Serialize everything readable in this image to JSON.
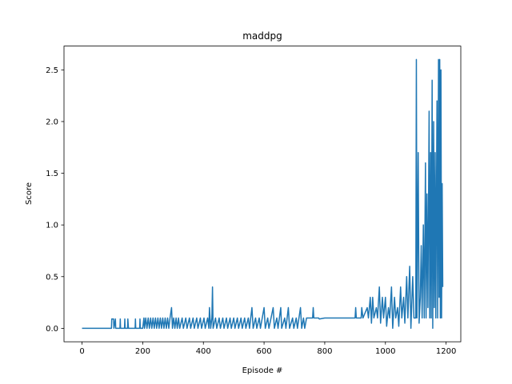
{
  "chart_data": {
    "type": "line",
    "title": "maddpg",
    "x_label": "Episode #",
    "y_label": "Score",
    "color": "#1f77b4",
    "xlim": [
      -59.45,
      1248.45
    ],
    "ylim": [
      -0.13,
      2.73
    ],
    "xticks": [
      0,
      200,
      400,
      600,
      800,
      1000,
      1200
    ],
    "yticks": [
      {
        "value": 0,
        "label": "0.0"
      },
      0.5,
      {
        "value": 1,
        "label": "1.0"
      },
      1.5,
      {
        "value": 2,
        "label": "2.0"
      },
      2.5
    ],
    "x": [
      0,
      95,
      97,
      98,
      104,
      105,
      110,
      111,
      125,
      126,
      127,
      140,
      141,
      142,
      150,
      151,
      153,
      175,
      176,
      177,
      190,
      191,
      192,
      200,
      204,
      206,
      210,
      214,
      218,
      222,
      226,
      230,
      234,
      238,
      242,
      246,
      250,
      254,
      258,
      262,
      266,
      270,
      274,
      278,
      282,
      286,
      290,
      295,
      298,
      302,
      306,
      310,
      314,
      318,
      322,
      330,
      334,
      342,
      346,
      354,
      358,
      366,
      370,
      378,
      382,
      390,
      394,
      402,
      406,
      414,
      418,
      420,
      424,
      428,
      430,
      432,
      440,
      444,
      452,
      456,
      464,
      468,
      476,
      480,
      488,
      492,
      500,
      504,
      512,
      516,
      524,
      528,
      536,
      540,
      548,
      552,
      560,
      564,
      572,
      576,
      584,
      588,
      600,
      604,
      612,
      616,
      630,
      634,
      642,
      646,
      655,
      658,
      668,
      672,
      680,
      684,
      694,
      698,
      706,
      710,
      720,
      724,
      730,
      734,
      740,
      760,
      762,
      764,
      780,
      782,
      800,
      900,
      902,
      904,
      920,
      922,
      926,
      940,
      944,
      950,
      954,
      958,
      962,
      970,
      974,
      980,
      984,
      990,
      994,
      1000,
      1004,
      1010,
      1014,
      1020,
      1024,
      1030,
      1034,
      1040,
      1044,
      1050,
      1054,
      1060,
      1064,
      1070,
      1074,
      1080,
      1084,
      1090,
      1094,
      1100,
      1102,
      1104,
      1108,
      1111,
      1115,
      1118,
      1121,
      1125,
      1128,
      1132,
      1134,
      1137,
      1140,
      1144,
      1146,
      1149,
      1151,
      1154,
      1156,
      1159,
      1161,
      1164,
      1166,
      1170,
      1172,
      1175,
      1177,
      1179,
      1181,
      1183,
      1185,
      1187,
      1189
    ],
    "values": [
      0,
      0,
      0,
      0.09,
      0.09,
      0,
      0.09,
      0,
      0,
      0.09,
      0,
      0,
      0.09,
      0,
      0,
      0.09,
      0,
      0,
      0.09,
      0,
      0,
      0.09,
      0,
      0,
      0.1,
      0,
      0.1,
      0,
      0.1,
      0,
      0.1,
      0,
      0.1,
      0,
      0.1,
      0,
      0.1,
      0,
      0.1,
      0,
      0.1,
      0,
      0.1,
      0,
      0.1,
      0,
      0.1,
      0.2,
      0,
      0.1,
      0,
      0.1,
      0,
      0.1,
      0,
      0.1,
      0,
      0.1,
      0,
      0.1,
      0,
      0.1,
      0,
      0.1,
      0,
      0.1,
      0,
      0.1,
      0,
      0.1,
      0,
      0.2,
      0,
      0.1,
      0.4,
      0,
      0.1,
      0,
      0.1,
      0,
      0.1,
      0,
      0.1,
      0,
      0.1,
      0,
      0.1,
      0,
      0.1,
      0,
      0.1,
      0,
      0.1,
      0,
      0.1,
      0,
      0.2,
      0,
      0.1,
      0,
      0.1,
      0,
      0.2,
      0,
      0.1,
      0,
      0.2,
      0,
      0.1,
      0,
      0.2,
      0,
      0.1,
      0,
      0.2,
      0,
      0.1,
      0,
      0.1,
      0,
      0.2,
      0,
      0.1,
      0,
      0.1,
      0.1,
      0.2,
      0.1,
      0.1,
      0.09,
      0.1,
      0.1,
      0.2,
      0.1,
      0.1,
      0.2,
      0.1,
      0.2,
      0.1,
      0.3,
      0.05,
      0.3,
      0.1,
      0.2,
      0.1,
      0.4,
      0.05,
      0.3,
      0.1,
      0.3,
      0.02,
      0.2,
      0.1,
      0.4,
      0,
      0.3,
      0.1,
      0.2,
      0.02,
      0.4,
      0.1,
      0.3,
      0.05,
      0.5,
      0.1,
      0.6,
      0,
      0.5,
      0.1,
      0.1,
      2.6,
      0.1,
      1.7,
      0.05,
      0.3,
      0.8,
      0.1,
      1.0,
      0.1,
      1.6,
      0.1,
      1.3,
      0.2,
      2.1,
      0.1,
      1.7,
      0.1,
      2.4,
      0,
      2.0,
      0.2,
      1.7,
      0.1,
      2.2,
      0.1,
      2.6,
      0.3,
      2.6,
      0.1,
      2.5,
      0.1,
      1.4,
      0.4
    ]
  }
}
